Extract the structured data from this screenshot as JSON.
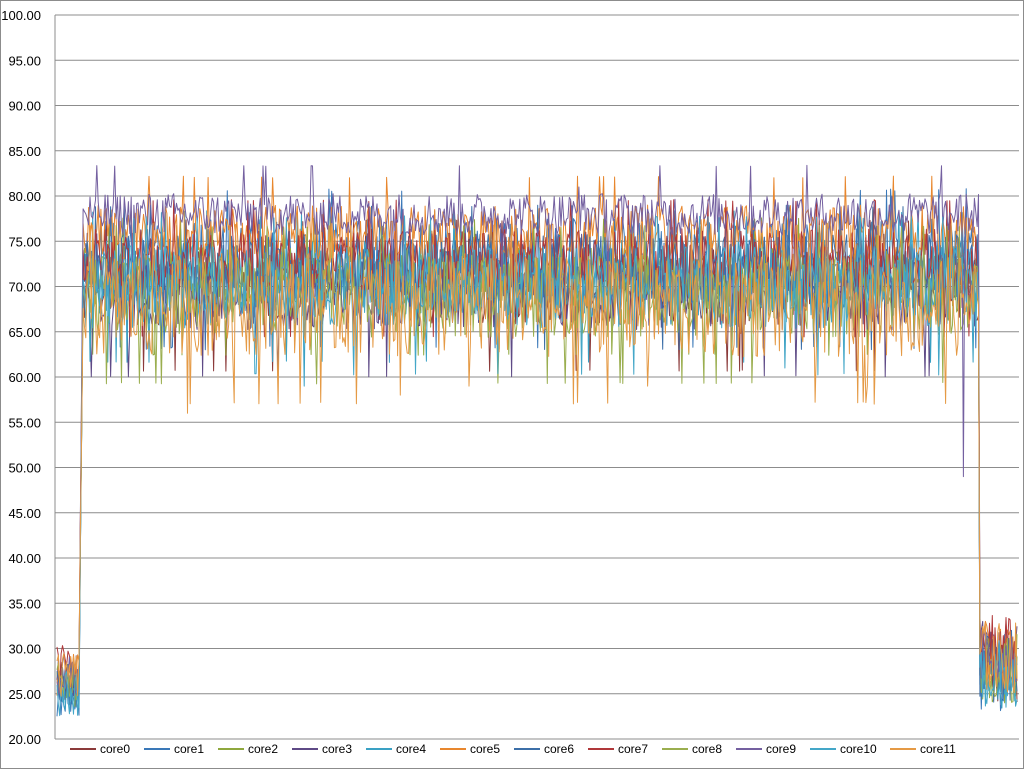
{
  "chart_data": {
    "type": "line",
    "title": "",
    "xlabel": "",
    "ylabel": "",
    "ylim": [
      20,
      100
    ],
    "y_ticks": [
      "20.00",
      "25.00",
      "30.00",
      "35.00",
      "40.00",
      "45.00",
      "50.00",
      "55.00",
      "60.00",
      "65.00",
      "70.00",
      "75.00",
      "80.00",
      "85.00",
      "90.00",
      "95.00",
      "100.00"
    ],
    "grid": true,
    "legend_position": "bottom",
    "n_points": 700,
    "series": [
      {
        "name": "core0",
        "color": "#8B3A3A",
        "idle": 26,
        "load": 70,
        "jitter": 2.2,
        "spikes": []
      },
      {
        "name": "core1",
        "color": "#3A78B8",
        "idle": 25,
        "load": 73,
        "jitter": 2.4,
        "spikes": []
      },
      {
        "name": "core2",
        "color": "#8FA83E",
        "idle": 26,
        "load": 71,
        "jitter": 1.8,
        "spikes": []
      },
      {
        "name": "core3",
        "color": "#5E4A86",
        "idle": 27,
        "load": 69,
        "jitter": 2.0,
        "spikes": []
      },
      {
        "name": "core4",
        "color": "#3AA1C4",
        "idle": 25,
        "load": 71,
        "jitter": 2.2,
        "spikes": [
          [
            180,
            59
          ],
          [
            530,
            61
          ]
        ]
      },
      {
        "name": "core5",
        "color": "#E8872E",
        "idle": 27,
        "load": 76,
        "jitter": 1.6,
        "spikes": []
      },
      {
        "name": "core6",
        "color": "#3C6FA8",
        "idle": 26,
        "load": 72,
        "jitter": 2.0,
        "spikes": []
      },
      {
        "name": "core7",
        "color": "#B0383A",
        "idle": 28,
        "load": 73,
        "jitter": 1.8,
        "spikes": []
      },
      {
        "name": "core8",
        "color": "#9AAE4F",
        "idle": 26,
        "load": 69,
        "jitter": 2.4,
        "spikes": []
      },
      {
        "name": "core9",
        "color": "#7460A0",
        "idle": 27,
        "load": 78,
        "jitter": 1.2,
        "spikes": [
          [
            660,
            49
          ],
          [
            380,
            81
          ]
        ]
      },
      {
        "name": "core10",
        "color": "#44A7C8",
        "idle": 25,
        "load": 70,
        "jitter": 2.4,
        "spikes": []
      },
      {
        "name": "core11",
        "color": "#E59A45",
        "idle": 27,
        "load": 68,
        "jitter": 3.0,
        "spikes": [
          [
            95,
            56
          ],
          [
            250,
            58
          ],
          [
            300,
            59
          ],
          [
            430,
            59
          ],
          [
            590,
            59
          ]
        ]
      }
    ]
  }
}
